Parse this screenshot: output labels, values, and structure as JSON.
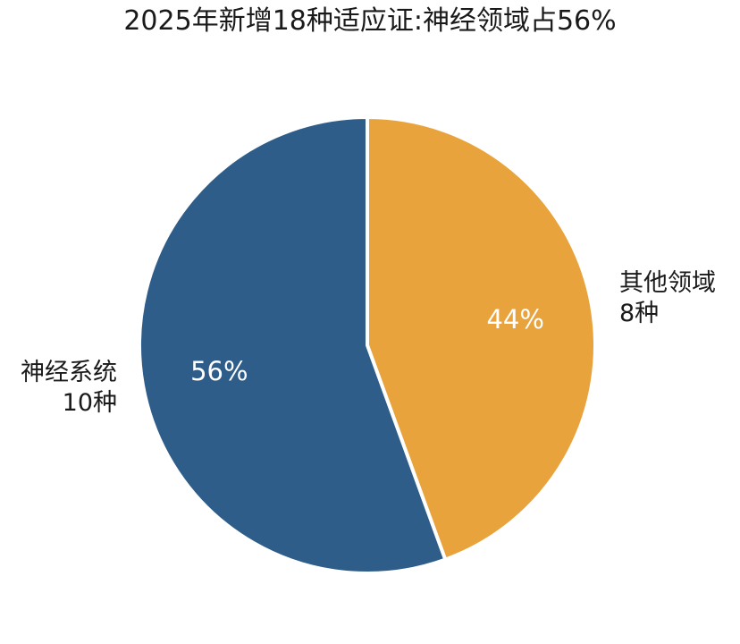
{
  "chart_data": {
    "type": "pie",
    "title": "2025年新增18种适应证:神经领域占56%",
    "slices": [
      {
        "name": "其他领域",
        "count_label": "8种",
        "value": 8,
        "percent_label": "44%",
        "color": "#E8A33D"
      },
      {
        "name": "神经系统",
        "count_label": "10种",
        "value": 10,
        "percent_label": "56%",
        "color": "#2E5D8A"
      }
    ],
    "start_angle": "12 o'clock",
    "direction": "clockwise",
    "slice_separator_color": "#ffffff"
  }
}
